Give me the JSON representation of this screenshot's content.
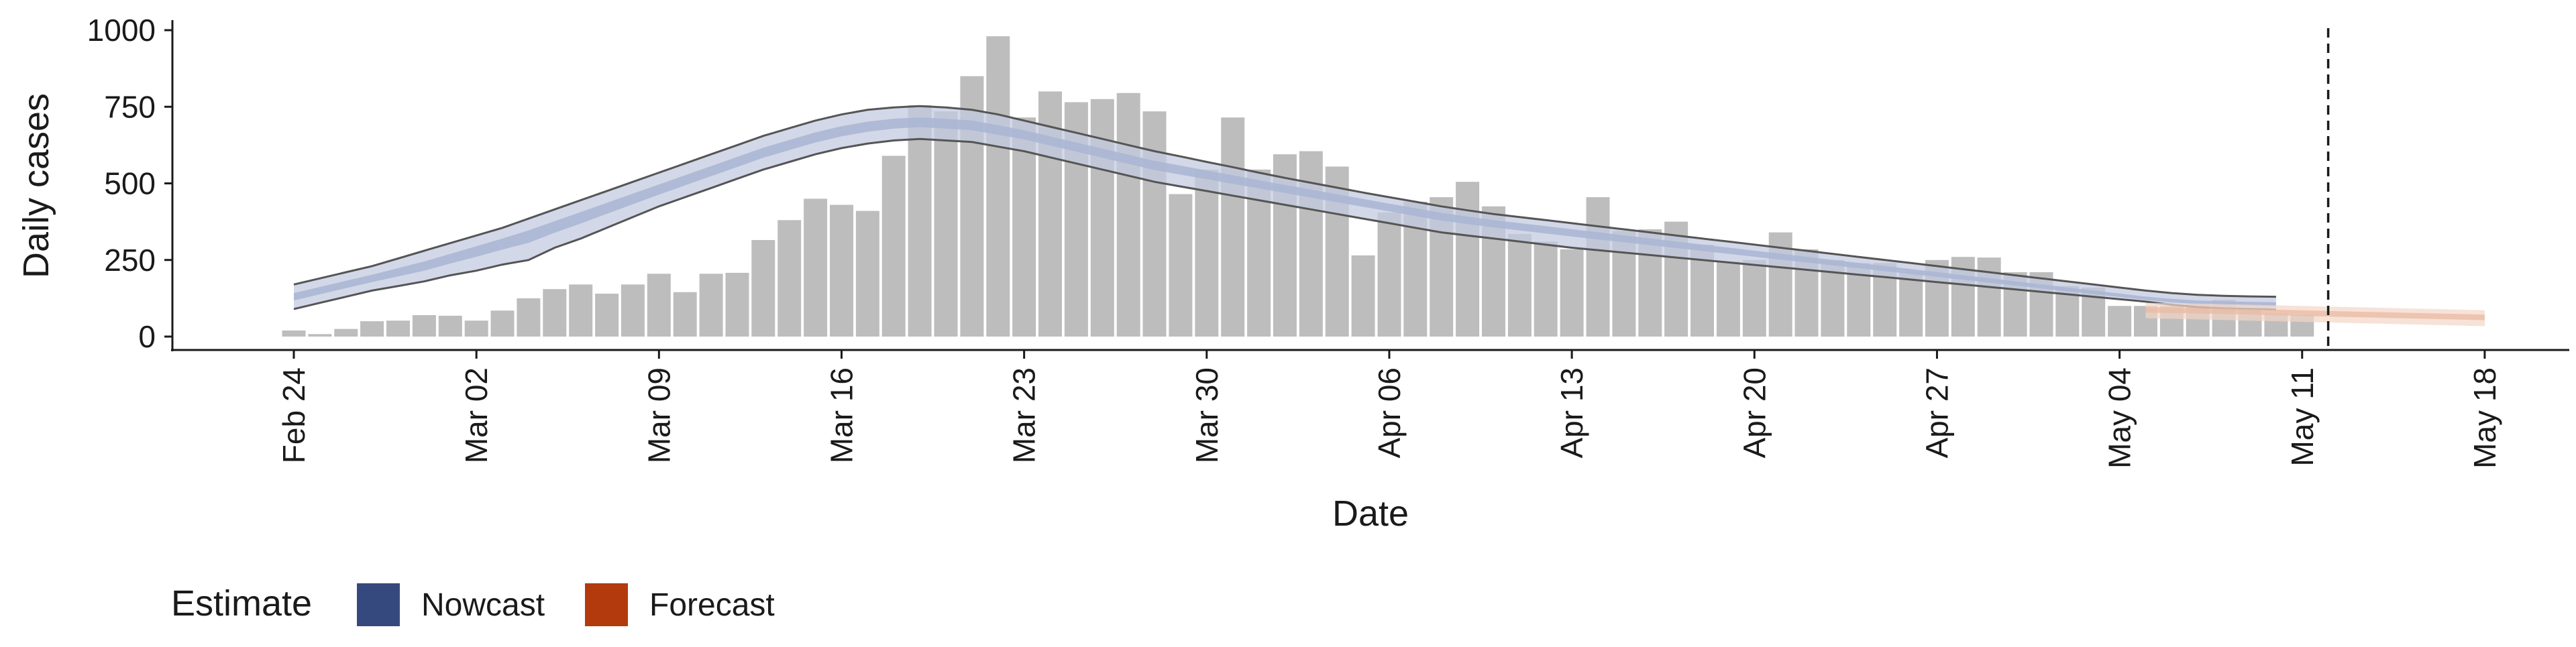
{
  "chart_data": {
    "type": "bar",
    "title": "",
    "xlabel": "Date",
    "ylabel": "Daily cases",
    "ylim": [
      0,
      1000
    ],
    "yticks": [
      0,
      250,
      500,
      750,
      1000
    ],
    "xlim_dates": [
      "2020-02-22",
      "2020-05-20"
    ],
    "x_ticks": [
      {
        "date": "2020-02-24",
        "label": "Feb 24"
      },
      {
        "date": "2020-03-02",
        "label": "Mar 02"
      },
      {
        "date": "2020-03-09",
        "label": "Mar 09"
      },
      {
        "date": "2020-03-16",
        "label": "Mar 16"
      },
      {
        "date": "2020-03-23",
        "label": "Mar 23"
      },
      {
        "date": "2020-03-30",
        "label": "Mar 30"
      },
      {
        "date": "2020-04-06",
        "label": "Apr 06"
      },
      {
        "date": "2020-04-13",
        "label": "Apr 13"
      },
      {
        "date": "2020-04-20",
        "label": "Apr 20"
      },
      {
        "date": "2020-04-27",
        "label": "Apr 27"
      },
      {
        "date": "2020-05-04",
        "label": "May 04"
      },
      {
        "date": "2020-05-11",
        "label": "May 11"
      },
      {
        "date": "2020-05-18",
        "label": "May 18"
      }
    ],
    "reported_cases": {
      "start_date": "2020-02-24",
      "values": [
        20,
        8,
        25,
        50,
        52,
        70,
        68,
        52,
        85,
        125,
        155,
        170,
        140,
        170,
        205,
        145,
        205,
        208,
        315,
        380,
        450,
        430,
        410,
        590,
        755,
        735,
        850,
        980,
        715,
        800,
        765,
        775,
        795,
        735,
        465,
        545,
        715,
        545,
        595,
        605,
        555,
        265,
        405,
        440,
        455,
        505,
        425,
        335,
        310,
        285,
        455,
        345,
        350,
        375,
        300,
        245,
        250,
        340,
        285,
        250,
        240,
        240,
        210,
        250,
        260,
        258,
        210,
        210,
        165,
        160,
        100,
        100,
        100,
        110,
        120,
        90,
        75,
        70
      ]
    },
    "nowcast": {
      "start_date": "2020-02-24",
      "median": [
        130,
        150,
        170,
        190,
        210,
        230,
        255,
        280,
        305,
        330,
        360,
        390,
        420,
        450,
        480,
        510,
        540,
        570,
        600,
        625,
        650,
        670,
        685,
        695,
        700,
        695,
        690,
        675,
        660,
        640,
        620,
        600,
        580,
        560,
        545,
        530,
        515,
        500,
        485,
        470,
        455,
        440,
        425,
        410,
        395,
        383,
        372,
        362,
        352,
        342,
        332,
        322,
        312,
        302,
        292,
        282,
        272,
        262,
        252,
        242,
        232,
        222,
        212,
        202,
        192,
        182,
        172,
        162,
        152,
        142,
        132,
        122,
        115,
        110,
        108,
        106,
        104
      ],
      "outer_upper": [
        170,
        190,
        210,
        230,
        255,
        280,
        305,
        330,
        355,
        385,
        415,
        445,
        475,
        505,
        535,
        565,
        595,
        625,
        655,
        680,
        705,
        725,
        740,
        748,
        752,
        748,
        740,
        725,
        705,
        685,
        665,
        645,
        625,
        605,
        588,
        570,
        553,
        535,
        518,
        502,
        486,
        470,
        455,
        440,
        425,
        412,
        400,
        390,
        380,
        370,
        360,
        350,
        340,
        330,
        320,
        310,
        300,
        290,
        280,
        270,
        260,
        250,
        240,
        230,
        220,
        210,
        200,
        190,
        180,
        170,
        160,
        150,
        142,
        136,
        133,
        131,
        130
      ],
      "outer_lower": [
        90,
        110,
        130,
        150,
        165,
        180,
        200,
        215,
        235,
        250,
        290,
        320,
        355,
        390,
        425,
        455,
        485,
        515,
        545,
        570,
        595,
        615,
        630,
        640,
        645,
        640,
        635,
        620,
        605,
        585,
        565,
        545,
        525,
        505,
        490,
        475,
        460,
        445,
        430,
        415,
        400,
        385,
        370,
        355,
        340,
        330,
        320,
        310,
        300,
        290,
        282,
        274,
        266,
        258,
        250,
        242,
        234,
        226,
        218,
        210,
        202,
        194,
        186,
        178,
        170,
        162,
        154,
        146,
        138,
        130,
        122,
        114,
        104,
        96,
        92,
        90,
        88
      ]
    },
    "forecast": {
      "start_date": "2020-05-05",
      "median": [
        88,
        87,
        86,
        84,
        82,
        80,
        78,
        76,
        74,
        72,
        70,
        68,
        66,
        64
      ],
      "upper": [
        110,
        110,
        108,
        106,
        104,
        102,
        100,
        98,
        96,
        94,
        92,
        90,
        88,
        86
      ],
      "lower": [
        60,
        58,
        56,
        54,
        52,
        50,
        48,
        46,
        44,
        42,
        40,
        38,
        36,
        34
      ]
    },
    "vline_date": "2020-05-12",
    "legend": {
      "position": "bottom-left",
      "title": "Estimate",
      "entries": [
        {
          "label": "Nowcast",
          "color": "#36497e"
        },
        {
          "label": "Forecast",
          "color": "#b23a0c"
        }
      ]
    },
    "colors": {
      "bar": "#bdbdbd",
      "nowcast_band": "#c3cbe0",
      "nowcast_inner": "#a9b5d3",
      "forecast_band": "#f3d6c8",
      "forecast_inner": "#e8b9a3",
      "outline": "#555555"
    },
    "grid": false
  }
}
